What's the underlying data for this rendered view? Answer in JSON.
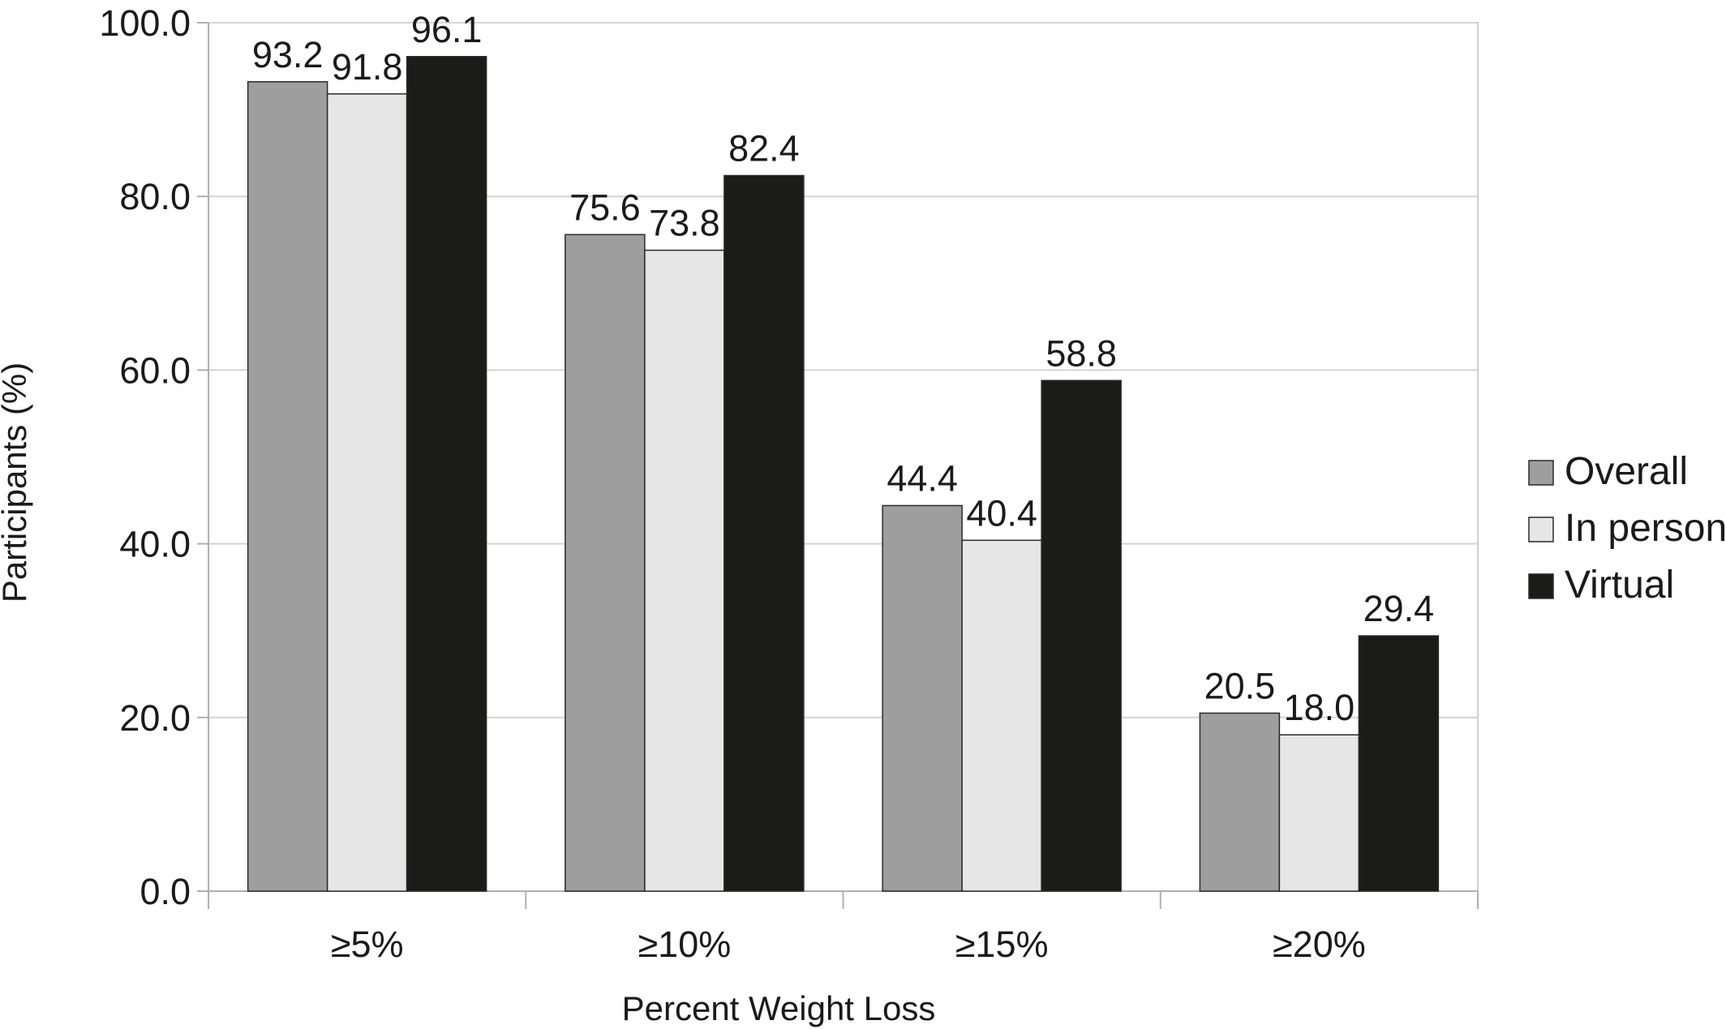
{
  "chart_data": {
    "type": "bar",
    "title": "",
    "xlabel": "Percent Weight Loss",
    "ylabel": "Participants (%)",
    "ylim": [
      0,
      100
    ],
    "yticks": [
      0,
      20,
      40,
      60,
      80,
      100
    ],
    "ytick_labels": [
      "0.0",
      "20.0",
      "40.0",
      "60.0",
      "80.0",
      "100.0"
    ],
    "grid": true,
    "legend_position": "right",
    "categories": [
      "≥5%",
      "≥10%",
      "≥15%",
      "≥20%"
    ],
    "series": [
      {
        "name": "Overall",
        "color": "#9e9e9e",
        "values": [
          93.2,
          75.6,
          44.4,
          20.5
        ],
        "labels": [
          "93.2",
          "75.6",
          "44.4",
          "20.5"
        ]
      },
      {
        "name": "In person",
        "color": "#e6e6e6",
        "values": [
          91.8,
          73.8,
          40.4,
          18.0
        ],
        "labels": [
          "91.8",
          "73.8",
          "40.4",
          "18.0"
        ]
      },
      {
        "name": "Virtual",
        "color": "#1b1b19",
        "values": [
          96.1,
          82.4,
          58.8,
          29.4
        ],
        "labels": [
          "96.1",
          "82.4",
          "58.8",
          "29.4"
        ]
      }
    ]
  }
}
